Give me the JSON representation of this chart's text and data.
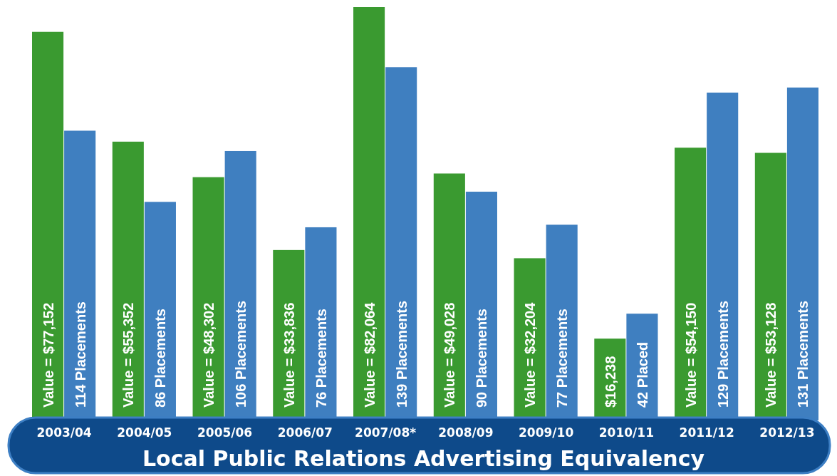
{
  "chart_data": {
    "type": "bar",
    "title": "Local Public Relations Advertising Equivalency",
    "categories": [
      "2003/04",
      "2004/05",
      "2005/06",
      "2006/07",
      "2007/08*",
      "2008/09",
      "2009/10",
      "2010/11",
      "2011/12",
      "2012/13"
    ],
    "series": [
      {
        "color": "#3a9a30",
        "values": [
          77152,
          55352,
          48302,
          33836,
          82064,
          49028,
          32204,
          16238,
          54150,
          53128
        ],
        "value_labels": [
          "Value = $77,152",
          "Value = $55,352",
          "Value = $48,302",
          "Value = $33,836",
          "Value = $82,064",
          "Value = $49,028",
          "Value = $32,204",
          "$16,238",
          "Value = $54,150",
          "Value = $53,128"
        ]
      },
      {
        "color": "#3f7fc0",
        "axis": "y2",
        "values": [
          114,
          86,
          106,
          76,
          139,
          90,
          77,
          42,
          129,
          131
        ],
        "value_labels": [
          "114 Placements",
          "86 Placements",
          "106 Placements",
          "76 Placements",
          "139 Placements",
          "90 Placements",
          "77 Placements",
          "42 Placed",
          "129 Placements",
          "131 Placements"
        ]
      }
    ]
  }
}
